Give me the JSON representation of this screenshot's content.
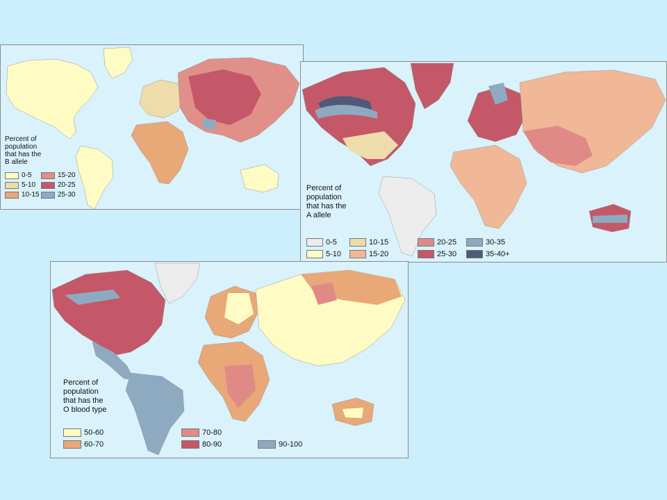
{
  "maps": {
    "b_allele": {
      "title": "Percent of\npopulation\nthat has the\nB allele",
      "legend": [
        {
          "label": "0-5",
          "color": "#fffbc4"
        },
        {
          "label": "5-10",
          "color": "#eedcaa"
        },
        {
          "label": "10-15",
          "color": "#e8a878"
        },
        {
          "label": "15-20",
          "color": "#e09088"
        },
        {
          "label": "20-25",
          "color": "#c45868"
        },
        {
          "label": "25-30",
          "color": "#8eaac0"
        }
      ]
    },
    "a_allele": {
      "title": "Percent of\npopulation\nthat has the\nA allele",
      "legend": [
        {
          "label": "0-5",
          "color": "#ececec"
        },
        {
          "label": "5-10",
          "color": "#fffbc4"
        },
        {
          "label": "10-15",
          "color": "#eedcaa"
        },
        {
          "label": "15-20",
          "color": "#f0b896"
        },
        {
          "label": "20-25",
          "color": "#e08a88"
        },
        {
          "label": "25-30",
          "color": "#c45868"
        },
        {
          "label": "30-35",
          "color": "#8eaac0"
        },
        {
          "label": "35-40+",
          "color": "#505a78"
        }
      ]
    },
    "o_type": {
      "title": "Percent of\npopulation\nthat has the\nO blood type",
      "legend": [
        {
          "label": "50-60",
          "color": "#fffbc4"
        },
        {
          "label": "60-70",
          "color": "#e8a878"
        },
        {
          "label": "70-80",
          "color": "#e08a88"
        },
        {
          "label": "80-90",
          "color": "#c45868"
        },
        {
          "label": "90-100",
          "color": "#8eaac0"
        }
      ]
    }
  },
  "colors": {
    "background": "#cdeefc",
    "ocean": "#d9f2fb",
    "border": "#8a8a8a"
  }
}
